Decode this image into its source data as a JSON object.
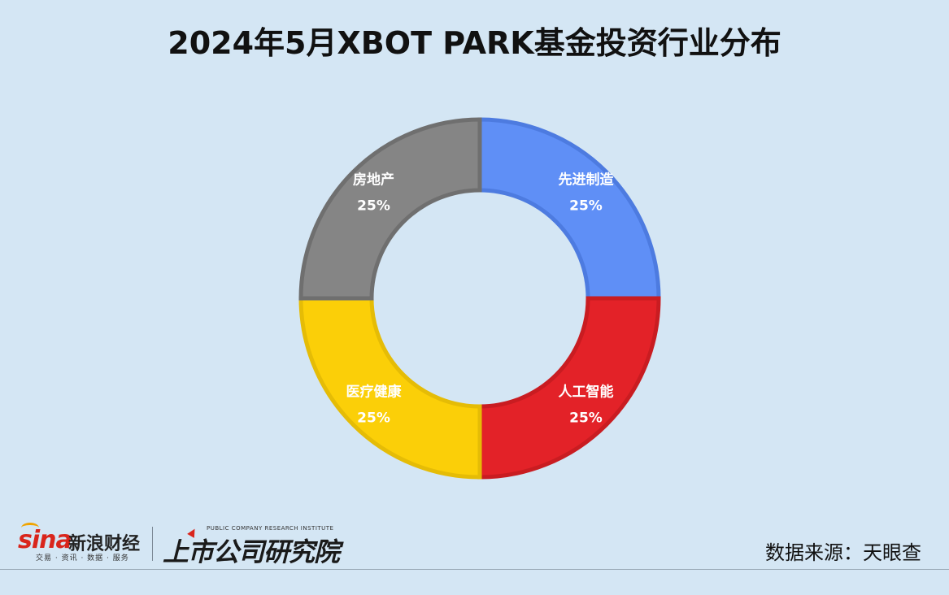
{
  "title": "2024年5月XBOT PARK基金投资行业分布",
  "source": "数据来源：天眼查",
  "logos": {
    "sina_word": "sina",
    "sina_cn": "新浪财经",
    "sina_sub": "交易 · 资讯 · 数据 · 服务",
    "research_en": "PUBLIC COMPANY RESEARCH INSTITUTE",
    "research_cn": "上市公司研究院"
  },
  "chart_data": {
    "type": "pie",
    "donut": true,
    "title": "2024年5月XBOT PARK基金投资行业分布",
    "legend": "none",
    "categories": [
      "先进制造",
      "人工智能",
      "医疗健康",
      "房地产"
    ],
    "values": [
      25,
      25,
      25,
      25
    ],
    "value_labels": [
      "25%",
      "25%",
      "25%",
      "25%"
    ],
    "colors": [
      "#5f8ff6",
      "#e32228",
      "#fbcf08",
      "#858585"
    ],
    "border_colors": [
      "#4d7be0",
      "#c91c21",
      "#e5bc06",
      "#6f6f6f"
    ]
  }
}
